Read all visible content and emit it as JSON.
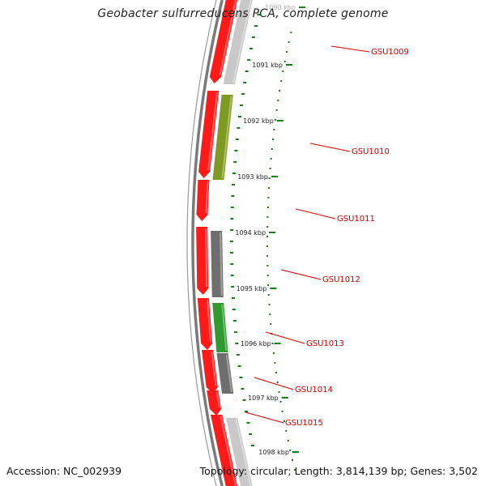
{
  "title": "Geobacter sulfurreducens PCA, complete genome",
  "accession_text": "Accession: NC_002939",
  "topology_text": "Topology: circular; Length: 3,814,139 bp; Genes: 3,502",
  "ruler": {
    "labels": [
      "1090 kbp",
      "1091 kbp",
      "1092 kbp",
      "1093 kbp",
      "1094 kbp",
      "1095 kbp",
      "1096 kbp",
      "1097 kbp",
      "1098 kbp"
    ]
  },
  "genes": [
    {
      "label": "GSU1009",
      "color": "#c8c8c8"
    },
    {
      "label": "GSU1010",
      "color": "#7f9a22"
    },
    {
      "label": "GSU1011",
      "color": ""
    },
    {
      "label": "GSU1012",
      "color": "#6e6e6e"
    },
    {
      "label": "GSU1013",
      "color": "#2f9a2f"
    },
    {
      "label": "GSU1014",
      "color": "#6e6e6e"
    },
    {
      "label": "GSU1015",
      "color": "#c8c8c8"
    }
  ],
  "colors": {
    "cds": "#ff1a1a",
    "backbone": "#7a7a7a",
    "ruler": "#1a7a1a",
    "gene_label": "#cc0000",
    "pointer": "#dd0000"
  }
}
